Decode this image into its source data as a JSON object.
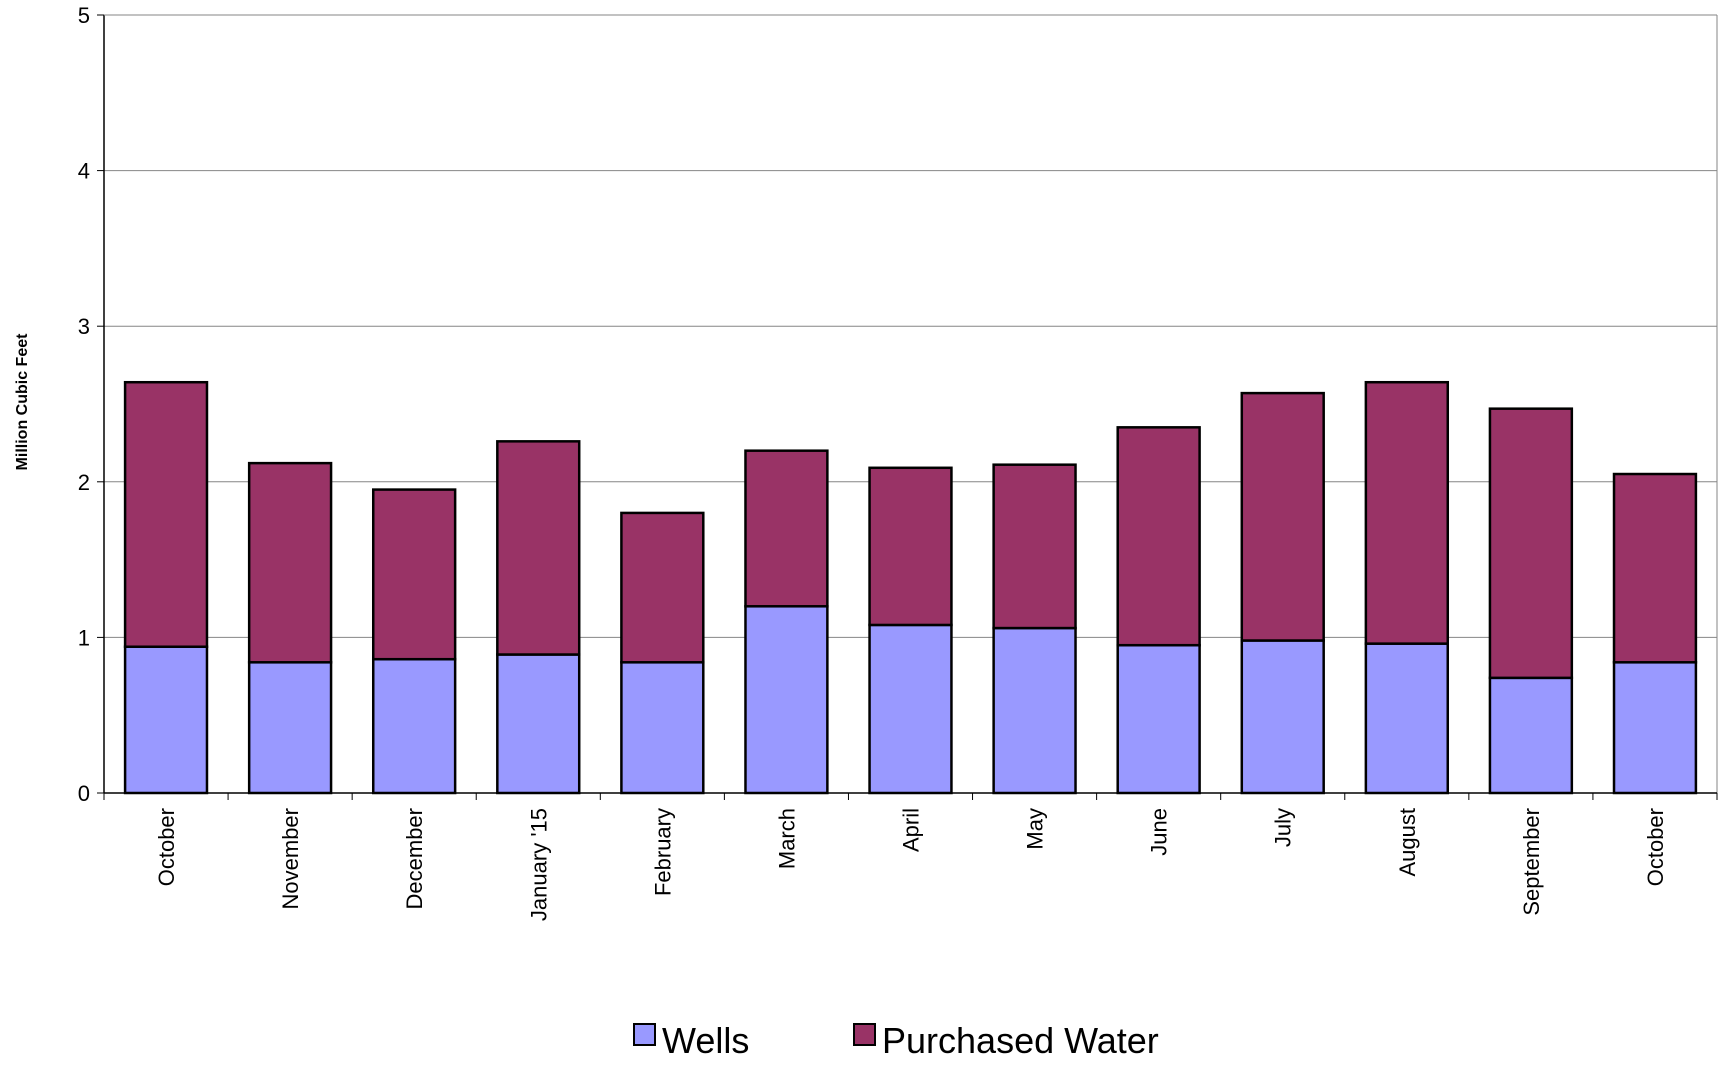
{
  "chart_data": {
    "type": "bar",
    "stacked": true,
    "title": "",
    "xlabel": "",
    "ylabel": "Million Cubic Feet",
    "ylim": [
      0,
      5
    ],
    "yticks": [
      0,
      1,
      2,
      3,
      4,
      5
    ],
    "grid": true,
    "legend": "bottom",
    "categories": [
      "October",
      "November",
      "December",
      "January '15",
      "February",
      "March",
      "April",
      "May",
      "June",
      "July",
      "August",
      "September",
      "October"
    ],
    "series": [
      {
        "name": "Wells",
        "color": "#9999ff",
        "values": [
          0.94,
          0.84,
          0.86,
          0.89,
          0.84,
          1.2,
          1.08,
          1.06,
          0.95,
          0.98,
          0.96,
          0.74,
          0.84
        ]
      },
      {
        "name": "Purchased Water",
        "color": "#993366",
        "values": [
          1.7,
          1.28,
          1.09,
          1.37,
          0.96,
          1.0,
          1.01,
          1.05,
          1.4,
          1.59,
          1.68,
          1.73,
          1.21
        ]
      }
    ]
  }
}
